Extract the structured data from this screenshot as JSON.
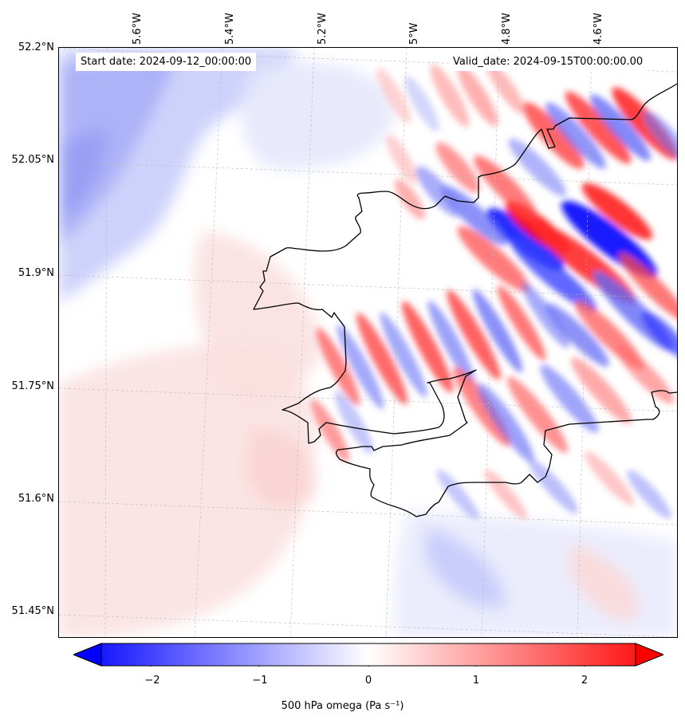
{
  "info": {
    "start": "Start date: 2024-09-12_00:00:00",
    "valid": "Valid_date: 2024-09-15T00:00:00.00"
  },
  "axes": {
    "lat_ticks": [
      "52.2°N",
      "52.05°N",
      "51.9°N",
      "51.75°N",
      "51.6°N",
      "51.45°N"
    ],
    "lon_ticks": [
      "5.6°W",
      "5.4°W",
      "5.2°W",
      "5°W",
      "4.8°W",
      "4.6°W"
    ]
  },
  "colorbar": {
    "ticks": [
      "−2",
      "−1",
      "0",
      "1",
      "2"
    ],
    "range": [
      -2.5,
      2.5
    ],
    "label": "500 hPa omega (Pa s⁻¹)",
    "colors": {
      "negative": "#0000ff",
      "zero": "#ffffff",
      "positive": "#ff0000"
    }
  },
  "map": {
    "gridlines": "dashed",
    "coastline_color": "#000000"
  }
}
